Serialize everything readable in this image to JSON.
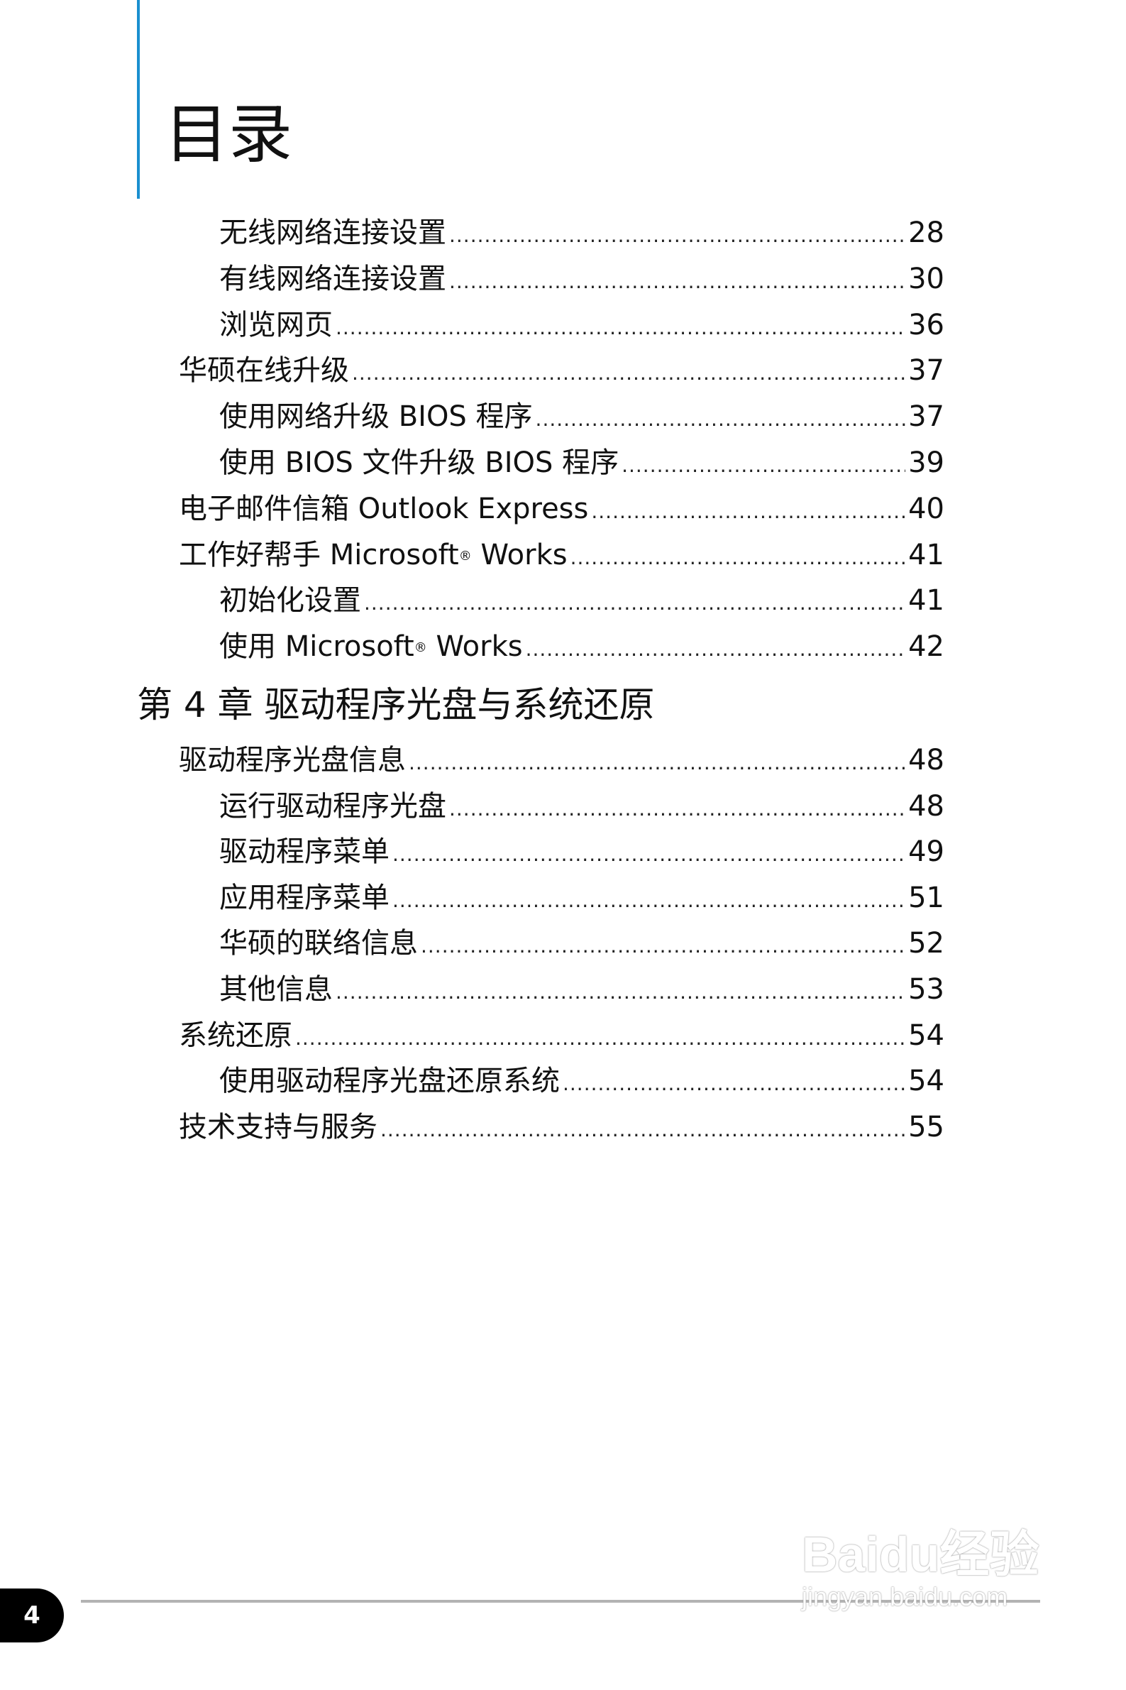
{
  "header": {
    "title": "目录",
    "accent_color": "#1a8fd0"
  },
  "entries_top": [
    {
      "label": "无线网络连接设置",
      "page": "28",
      "level": 2
    },
    {
      "label": "有线网络连接设置",
      "page": "30",
      "level": 2
    },
    {
      "label": "浏览网页",
      "page": "36",
      "level": 2
    },
    {
      "label": "华硕在线升级",
      "page": "37",
      "level": 1
    },
    {
      "label": "使用网络升级 BIOS 程序",
      "page": "37",
      "level": 2
    },
    {
      "label": "使用 BIOS 文件升级 BIOS 程序",
      "page": "39",
      "level": 2
    },
    {
      "label": "电子邮件信箱 Outlook Express",
      "page": "40",
      "level": 1
    },
    {
      "label": "工作好帮手 Microsoft",
      "sup": "®",
      "label_after": " Works",
      "page": "41",
      "level": 1
    },
    {
      "label": "初始化设置",
      "page": "41",
      "level": 2
    },
    {
      "label": "使用 Microsoft",
      "sup": "®",
      "label_after": " Works",
      "page": "42",
      "level": 2
    }
  ],
  "chapter": {
    "title": "第 4 章 驱动程序光盘与系统还原"
  },
  "entries_chapter": [
    {
      "label": "驱动程序光盘信息",
      "page": "48",
      "level": 1
    },
    {
      "label": "运行驱动程序光盘",
      "page": "48",
      "level": 2
    },
    {
      "label": "驱动程序菜单",
      "page": "49",
      "level": 2
    },
    {
      "label": "应用程序菜单",
      "page": "51",
      "level": 2
    },
    {
      "label": "华硕的联络信息",
      "page": "52",
      "level": 2
    },
    {
      "label": "其他信息",
      "page": "53",
      "level": 2
    },
    {
      "label": "系统还原",
      "page": "54",
      "level": 1
    },
    {
      "label": "使用驱动程序光盘还原系统",
      "page": "54",
      "level": 2
    },
    {
      "label": "技术支持与服务",
      "page": "55",
      "level": 1
    }
  ],
  "footer": {
    "page_number": "4"
  },
  "watermark": {
    "logo": "Baidu经验",
    "url": "jingyan.baidu.com"
  }
}
